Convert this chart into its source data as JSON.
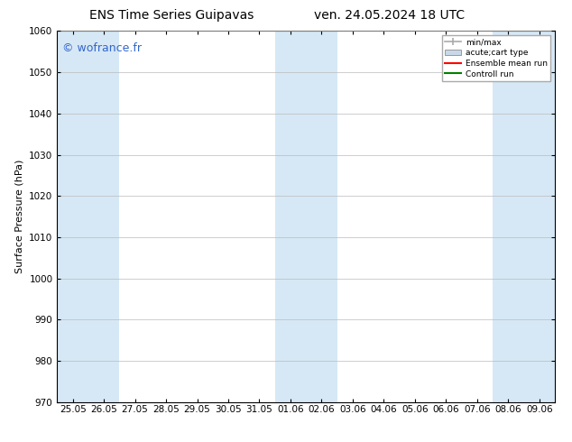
{
  "title_left": "ENS Time Series Guipavas",
  "title_right": "ven. 24.05.2024 18 UTC",
  "ylabel": "Surface Pressure (hPa)",
  "ylim": [
    970,
    1060
  ],
  "yticks": [
    970,
    980,
    990,
    1000,
    1010,
    1020,
    1030,
    1040,
    1050,
    1060
  ],
  "x_labels": [
    "25.05",
    "26.05",
    "27.05",
    "28.05",
    "29.05",
    "30.05",
    "31.05",
    "01.06",
    "02.06",
    "03.06",
    "04.06",
    "05.06",
    "06.06",
    "07.06",
    "08.06",
    "09.06"
  ],
  "shaded_indices": [
    0,
    1,
    7,
    8,
    14,
    15
  ],
  "shaded_color": "#d6e8f5",
  "watermark": "© wofrance.fr",
  "watermark_color": "#3366cc",
  "legend_entries": [
    {
      "label": "min/max",
      "color": "#aaaaaa",
      "type": "errorbar"
    },
    {
      "label": "acute;cart type",
      "color": "#c8d8e8",
      "type": "box"
    },
    {
      "label": "Ensemble mean run",
      "color": "red",
      "type": "line"
    },
    {
      "label": "Controll run",
      "color": "green",
      "type": "line"
    }
  ],
  "bg_color": "white",
  "grid_color": "#bbbbbb",
  "spine_color": "black",
  "title_fontsize": 10,
  "label_fontsize": 8,
  "tick_fontsize": 7.5,
  "watermark_fontsize": 9
}
